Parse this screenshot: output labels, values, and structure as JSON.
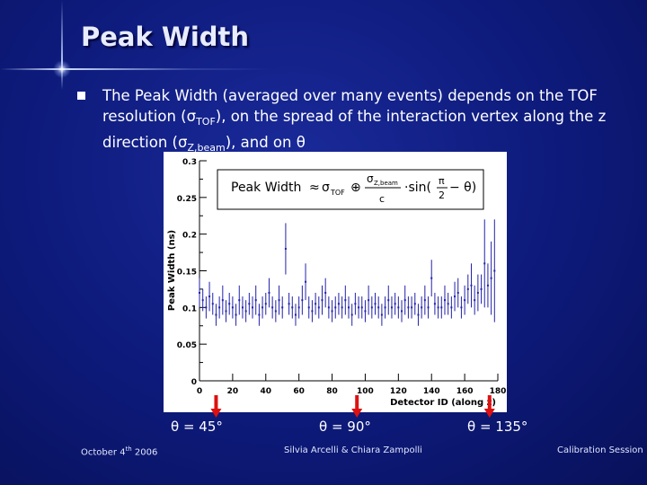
{
  "slide": {
    "title": "Peak Width",
    "bullet": {
      "t1": "The Peak Width (averaged over many events) depends on the TOF resolution (σ",
      "s1": "TOF",
      "t2": "), on the spread of the interaction vertex along the z direction (σ",
      "s2": "Z,beam",
      "t3": "), and on θ"
    },
    "theta_labels": [
      "θ = 45°",
      "θ = 90°",
      "θ = 135°"
    ],
    "footer": {
      "date": "October 4",
      "date_sup": "th",
      "year": " 2006",
      "authors": "Silvia Arcelli & Chiara Zampolli",
      "session": "Calibration Session"
    },
    "colors": {
      "arrow": "#dd1111",
      "data": "#2222aa",
      "title": "#e8ecff"
    }
  },
  "chart_data": {
    "type": "scatter",
    "xlabel": "Detector ID (along z)",
    "ylabel": "Peak Width (ns)",
    "xlim": [
      0,
      180
    ],
    "ylim": [
      0,
      0.3
    ],
    "x_ticks": [
      "0",
      "20",
      "40",
      "60",
      "80",
      "100",
      "120",
      "140",
      "160",
      "180"
    ],
    "y_ticks": [
      "0",
      "0.05",
      "0.1",
      "0.15",
      "0.2",
      "0.25",
      "0.3"
    ],
    "grid": false,
    "formula": {
      "lhs": "Peak Width",
      "approx": "≈",
      "sigma_tof": "σ",
      "sigma_tof_sub": "TOF",
      "oplus": "⊕",
      "num": "σ",
      "num_sub": "Z,beam",
      "den": "c",
      "sin": "·sin(",
      "pi": "π",
      "two": "2",
      "minus_theta": "− θ)"
    },
    "x": [
      0,
      2,
      4,
      6,
      8,
      10,
      12,
      14,
      16,
      18,
      20,
      22,
      24,
      26,
      28,
      30,
      32,
      34,
      36,
      38,
      40,
      42,
      44,
      46,
      48,
      50,
      52,
      54,
      56,
      58,
      60,
      62,
      64,
      66,
      68,
      70,
      72,
      74,
      76,
      78,
      80,
      82,
      84,
      86,
      88,
      90,
      92,
      94,
      96,
      98,
      100,
      102,
      104,
      106,
      108,
      110,
      112,
      114,
      116,
      118,
      120,
      122,
      124,
      126,
      128,
      130,
      132,
      134,
      136,
      138,
      140,
      142,
      144,
      146,
      148,
      150,
      152,
      154,
      156,
      158,
      160,
      162,
      164,
      166,
      168,
      170,
      172,
      174,
      176,
      178
    ],
    "y": [
      0.12,
      0.11,
      0.1,
      0.115,
      0.105,
      0.09,
      0.1,
      0.11,
      0.095,
      0.105,
      0.1,
      0.09,
      0.11,
      0.1,
      0.095,
      0.105,
      0.1,
      0.11,
      0.09,
      0.1,
      0.105,
      0.12,
      0.1,
      0.095,
      0.11,
      0.1,
      0.18,
      0.105,
      0.1,
      0.09,
      0.1,
      0.11,
      0.135,
      0.1,
      0.095,
      0.105,
      0.1,
      0.11,
      0.12,
      0.1,
      0.095,
      0.1,
      0.105,
      0.1,
      0.11,
      0.1,
      0.09,
      0.105,
      0.1,
      0.1,
      0.095,
      0.11,
      0.1,
      0.105,
      0.1,
      0.09,
      0.1,
      0.11,
      0.1,
      0.105,
      0.1,
      0.095,
      0.11,
      0.1,
      0.1,
      0.105,
      0.09,
      0.1,
      0.11,
      0.1,
      0.14,
      0.105,
      0.1,
      0.1,
      0.11,
      0.105,
      0.1,
      0.115,
      0.12,
      0.1,
      0.11,
      0.125,
      0.13,
      0.11,
      0.12,
      0.125,
      0.16,
      0.13,
      0.14,
      0.15
    ],
    "yerr": [
      0.02,
      0.015,
      0.015,
      0.02,
      0.015,
      0.015,
      0.015,
      0.02,
      0.015,
      0.015,
      0.015,
      0.015,
      0.02,
      0.015,
      0.015,
      0.015,
      0.015,
      0.02,
      0.015,
      0.015,
      0.015,
      0.02,
      0.015,
      0.015,
      0.02,
      0.015,
      0.035,
      0.015,
      0.015,
      0.015,
      0.015,
      0.02,
      0.025,
      0.015,
      0.015,
      0.015,
      0.015,
      0.02,
      0.02,
      0.015,
      0.015,
      0.015,
      0.015,
      0.015,
      0.02,
      0.015,
      0.015,
      0.015,
      0.015,
      0.015,
      0.015,
      0.02,
      0.015,
      0.015,
      0.015,
      0.015,
      0.015,
      0.02,
      0.015,
      0.015,
      0.015,
      0.015,
      0.02,
      0.015,
      0.015,
      0.015,
      0.015,
      0.015,
      0.02,
      0.015,
      0.025,
      0.015,
      0.015,
      0.015,
      0.02,
      0.015,
      0.015,
      0.02,
      0.02,
      0.015,
      0.02,
      0.02,
      0.03,
      0.02,
      0.025,
      0.02,
      0.06,
      0.03,
      0.05,
      0.07
    ],
    "markers_x": [
      10,
      95,
      175
    ]
  }
}
